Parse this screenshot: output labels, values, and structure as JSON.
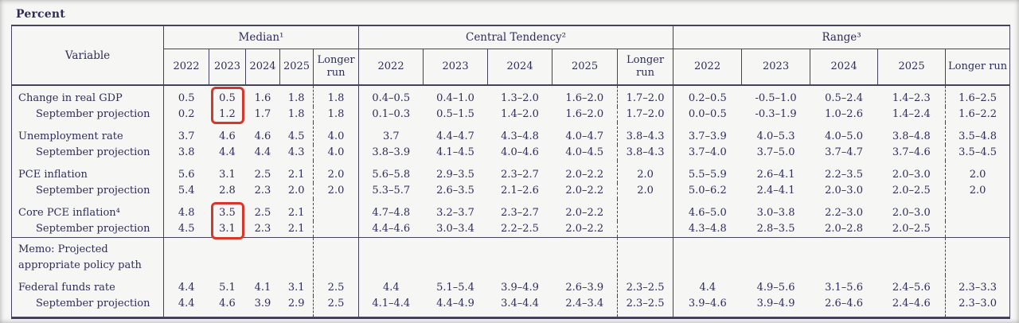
{
  "page": {
    "title": "Percent"
  },
  "table": {
    "variable_header": "Variable",
    "groups": [
      {
        "id": "median",
        "label": "Median¹",
        "years": [
          "2022",
          "2023",
          "2024",
          "2025",
          "Longer run"
        ]
      },
      {
        "id": "central",
        "label": "Central Tendency²",
        "years": [
          "2022",
          "2023",
          "2024",
          "2025",
          "Longer run"
        ]
      },
      {
        "id": "range",
        "label": "Range³",
        "years": [
          "2022",
          "2023",
          "2024",
          "2025",
          "Longer run"
        ]
      }
    ],
    "rows": [
      {
        "label": "Change in real GDP",
        "indent": false,
        "first": true,
        "median": [
          "0.5",
          "0.5",
          "1.6",
          "1.8",
          "1.8"
        ],
        "central": [
          "0.4–0.5",
          "0.4–1.0",
          "1.3–2.0",
          "1.6–2.0",
          "1.7–2.0"
        ],
        "range": [
          "0.2–0.5",
          "-0.5–1.0",
          "0.5–2.4",
          "1.4–2.3",
          "1.6–2.5"
        ]
      },
      {
        "label": "September projection",
        "indent": true,
        "median": [
          "0.2",
          "1.2",
          "1.7",
          "1.8",
          "1.8"
        ],
        "central": [
          "0.1–0.3",
          "0.5–1.5",
          "1.4–2.0",
          "1.6–2.0",
          "1.7–2.0"
        ],
        "range": [
          "0.0–0.5",
          "-0.3–1.9",
          "1.0–2.6",
          "1.4–2.4",
          "1.6–2.2"
        ]
      },
      {
        "label": "Unemployment rate",
        "indent": false,
        "pair_start": true,
        "median": [
          "3.7",
          "4.6",
          "4.6",
          "4.5",
          "4.0"
        ],
        "central": [
          "3.7",
          "4.4–4.7",
          "4.3–4.8",
          "4.0–4.7",
          "3.8–4.3"
        ],
        "range": [
          "3.7–3.9",
          "4.0–5.3",
          "4.0–5.0",
          "3.8–4.8",
          "3.5–4.8"
        ]
      },
      {
        "label": "September projection",
        "indent": true,
        "median": [
          "3.8",
          "4.4",
          "4.4",
          "4.3",
          "4.0"
        ],
        "central": [
          "3.8–3.9",
          "4.1–4.5",
          "4.0–4.6",
          "4.0–4.5",
          "3.8–4.3"
        ],
        "range": [
          "3.7–4.0",
          "3.7–5.0",
          "3.7–4.7",
          "3.7–4.6",
          "3.5–4.5"
        ]
      },
      {
        "label": "PCE inflation",
        "indent": false,
        "pair_start": true,
        "median": [
          "5.6",
          "3.1",
          "2.5",
          "2.1",
          "2.0"
        ],
        "central": [
          "5.6–5.8",
          "2.9–3.5",
          "2.3–2.7",
          "2.0–2.2",
          "2.0"
        ],
        "range": [
          "5.5–5.9",
          "2.6–4.1",
          "2.2–3.5",
          "2.0–3.0",
          "2.0"
        ]
      },
      {
        "label": "September projection",
        "indent": true,
        "median": [
          "5.4",
          "2.8",
          "2.3",
          "2.0",
          "2.0"
        ],
        "central": [
          "5.3–5.7",
          "2.6–3.5",
          "2.1–2.6",
          "2.0–2.2",
          "2.0"
        ],
        "range": [
          "5.0–6.2",
          "2.4–4.1",
          "2.0–3.0",
          "2.0–2.5",
          "2.0"
        ]
      },
      {
        "label": "Core PCE inflation⁴",
        "indent": false,
        "pair_start": true,
        "median": [
          "4.8",
          "3.5",
          "2.5",
          "2.1",
          ""
        ],
        "central": [
          "4.7–4.8",
          "3.2–3.7",
          "2.3–2.7",
          "2.0–2.2",
          ""
        ],
        "range": [
          "4.6–5.0",
          "3.0–3.8",
          "2.2–3.0",
          "2.0–3.0",
          ""
        ]
      },
      {
        "label": "September projection",
        "indent": true,
        "median": [
          "4.5",
          "3.1",
          "2.3",
          "2.1",
          ""
        ],
        "central": [
          "4.4–4.6",
          "3.0–3.4",
          "2.2–2.5",
          "2.0–2.2",
          ""
        ],
        "range": [
          "4.3–4.8",
          "2.8–3.5",
          "2.0–2.8",
          "2.0–2.5",
          ""
        ]
      },
      {
        "label": "Memo: Projected appropriate policy path",
        "label_lines": [
          "Memo: Projected",
          "appropriate policy path"
        ],
        "indent": false,
        "memo": true,
        "section_break": true,
        "median": [
          "",
          "",
          "",
          "",
          ""
        ],
        "central": [
          "",
          "",
          "",
          "",
          ""
        ],
        "range": [
          "",
          "",
          "",
          "",
          ""
        ]
      },
      {
        "label": "Federal funds rate",
        "indent": false,
        "fed_start": true,
        "median": [
          "4.4",
          "5.1",
          "4.1",
          "3.1",
          "2.5"
        ],
        "central": [
          "4.4",
          "5.1–5.4",
          "3.9–4.9",
          "2.6–3.9",
          "2.3–2.5"
        ],
        "range": [
          "4.4",
          "4.9–5.6",
          "3.1–5.6",
          "2.4–5.6",
          "2.3–3.3"
        ]
      },
      {
        "label": "September projection",
        "indent": true,
        "last": true,
        "median": [
          "4.4",
          "4.6",
          "3.9",
          "2.9",
          "2.5"
        ],
        "central": [
          "4.1–4.4",
          "4.4–4.9",
          "3.4–4.4",
          "2.4–3.4",
          "2.3–2.5"
        ],
        "range": [
          "3.9–4.6",
          "3.9–4.9",
          "2.6–4.6",
          "2.4–4.6",
          "2.3–3.0"
        ]
      }
    ]
  },
  "highlights": {
    "color": "#d6372b",
    "boxes": [
      {
        "group": "median",
        "col": 1,
        "row_start": 0,
        "row_end": 1,
        "values": [
          "0.5",
          "1.2"
        ]
      },
      {
        "group": "median",
        "col": 1,
        "row_start": 6,
        "row_end": 7,
        "values": [
          "3.5",
          "3.1"
        ]
      }
    ]
  }
}
